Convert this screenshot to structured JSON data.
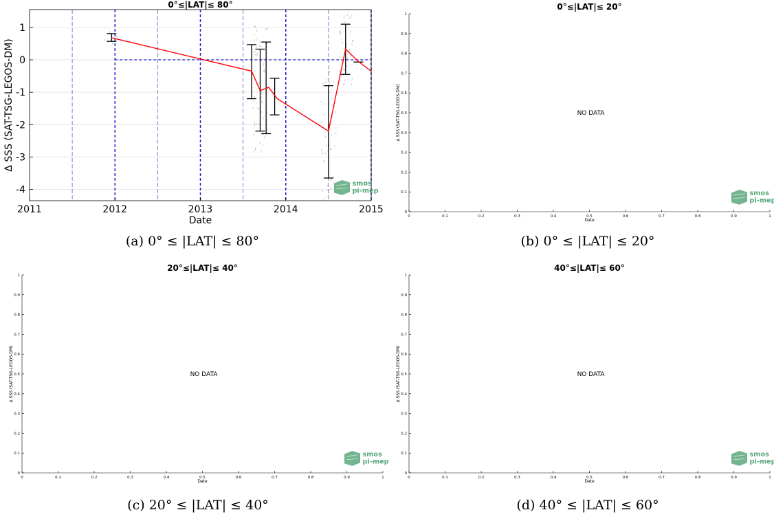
{
  "charts": [
    {
      "type": "line",
      "title": "0°≤|LAT|≤ 80°",
      "xlabel": "Date",
      "ylabel": "Δ SSS (SAT-TSG-LEGOS-DM)",
      "xlim": [
        2011.0,
        2015.0
      ],
      "ylim": [
        -4.35,
        1.55
      ],
      "xticks": [
        2011,
        2012,
        2013,
        2014,
        2015
      ],
      "xtick_labels": [
        "2011",
        "2012",
        "2013",
        "2014",
        "2015"
      ],
      "yticks": [
        -4,
        -3,
        -2,
        -1,
        0,
        1
      ],
      "ytick_labels": [
        "-4",
        "-3",
        "-2",
        "-1",
        "0",
        "1"
      ],
      "grid": true,
      "logo": [
        "smos",
        "pi-mep"
      ],
      "series": [
        {
          "x": [
            2011.96,
            2013.6,
            2013.7,
            2013.8,
            2013.9,
            2014.5,
            2014.7,
            2014.85,
            2015.0
          ],
          "y": [
            0.68,
            -0.35,
            -0.95,
            -0.85,
            -1.2,
            -2.2,
            0.33,
            -0.05,
            -0.35
          ],
          "color": "#ff0000"
        }
      ],
      "error_bars": [
        {
          "x": 2011.96,
          "low": 0.57,
          "high": 0.81
        },
        {
          "x": 2013.6,
          "low": -1.2,
          "high": 0.47
        },
        {
          "x": 2013.7,
          "low": -2.2,
          "high": 0.33
        },
        {
          "x": 2013.77,
          "low": -2.28,
          "high": 0.55
        },
        {
          "x": 2013.87,
          "low": -1.7,
          "high": -0.57
        },
        {
          "x": 2014.5,
          "low": -3.65,
          "high": -0.8
        },
        {
          "x": 2014.7,
          "low": -0.45,
          "high": 1.1
        },
        {
          "x": 2014.85,
          "low": -0.07,
          "high": -0.07
        }
      ],
      "vlines_light": [
        2011.5,
        2012.5,
        2013.5,
        2014.5
      ],
      "vlines_dashed": [
        2012.0,
        2013.0,
        2014.0,
        2015.0
      ],
      "hline_zero": 0,
      "hline_zero_start": 2012.0,
      "hline_zero_end": 2015.0
    },
    {
      "type": "line",
      "title": "0°≤|LAT|≤ 20°",
      "xlabel": "Date",
      "ylabel": "Δ SSS (SAT-TSG-LEGOS-DM)",
      "xlim": [
        0,
        1
      ],
      "ylim": [
        0,
        1
      ],
      "xticks": [
        0,
        0.1,
        0.2,
        0.3,
        0.4,
        0.5,
        0.6,
        0.7,
        0.8,
        0.9,
        1
      ],
      "xtick_labels": [
        "0",
        "0.1",
        "0.2",
        "0.3",
        "0.4",
        "0.5",
        "0.6",
        "0.7",
        "0.8",
        "0.9",
        "1"
      ],
      "yticks": [
        0,
        0.1,
        0.2,
        0.3,
        0.4,
        0.5,
        0.6,
        0.7,
        0.8,
        0.9,
        1
      ],
      "ytick_labels": [
        "0",
        "0.1",
        "0.2",
        "0.3",
        "0.4",
        "0.5",
        "0.6",
        "0.7",
        "0.8",
        "0.9",
        "1"
      ],
      "grid": false,
      "message": "NO DATA",
      "logo": [
        "smos",
        "pi-mep"
      ]
    },
    {
      "type": "line",
      "title": "20°≤|LAT|≤ 40°",
      "xlabel": "Date",
      "ylabel": "Δ SSS (SAT-TSG-LEGOS-DM)",
      "xlim": [
        0,
        1
      ],
      "ylim": [
        0,
        1
      ],
      "xticks": [
        0,
        0.1,
        0.2,
        0.3,
        0.4,
        0.5,
        0.6,
        0.7,
        0.8,
        0.9,
        1
      ],
      "xtick_labels": [
        "0",
        "0.1",
        "0.2",
        "0.3",
        "0.4",
        "0.5",
        "0.6",
        "0.7",
        "0.8",
        "0.9",
        "1"
      ],
      "yticks": [
        0,
        0.1,
        0.2,
        0.3,
        0.4,
        0.5,
        0.6,
        0.7,
        0.8,
        0.9,
        1
      ],
      "ytick_labels": [
        "0",
        "0.1",
        "0.2",
        "0.3",
        "0.4",
        "0.5",
        "0.6",
        "0.7",
        "0.8",
        "0.9",
        "1"
      ],
      "grid": false,
      "message": "NO DATA",
      "logo": [
        "smos",
        "pi-mep"
      ]
    },
    {
      "type": "line",
      "title": "40°≤|LAT|≤ 60°",
      "xlabel": "Date",
      "ylabel": "Δ SSS (SAT-TSG-LEGOS-DM)",
      "xlim": [
        0,
        1
      ],
      "ylim": [
        0,
        1
      ],
      "xticks": [
        0,
        0.1,
        0.2,
        0.3,
        0.4,
        0.5,
        0.6,
        0.7,
        0.8,
        0.9,
        1
      ],
      "xtick_labels": [
        "0",
        "0.1",
        "0.2",
        "0.3",
        "0.4",
        "0.5",
        "0.6",
        "0.7",
        "0.8",
        "0.9",
        "1"
      ],
      "yticks": [
        0,
        0.1,
        0.2,
        0.3,
        0.4,
        0.5,
        0.6,
        0.7,
        0.8,
        0.9,
        1
      ],
      "ytick_labels": [
        "0",
        "0.1",
        "0.2",
        "0.3",
        "0.4",
        "0.5",
        "0.6",
        "0.7",
        "0.8",
        "0.9",
        "1"
      ],
      "grid": false,
      "message": "NO DATA",
      "logo": [
        "smos",
        "pi-mep"
      ]
    }
  ],
  "captions": [
    "(a) 0° ≤ |LAT| ≤ 80°",
    "(b) 0° ≤ |LAT| ≤ 20°",
    "(c) 20° ≤ |LAT| ≤ 40°",
    "(d) 40° ≤ |LAT| ≤ 60°"
  ],
  "colors": {
    "series_line": "#ff0000",
    "error_bar": "#000000",
    "dashed_line": "#1a1acc",
    "light_line": "#8080d0",
    "logo": "#5aa87a",
    "scatter": "#9a9a9a"
  }
}
